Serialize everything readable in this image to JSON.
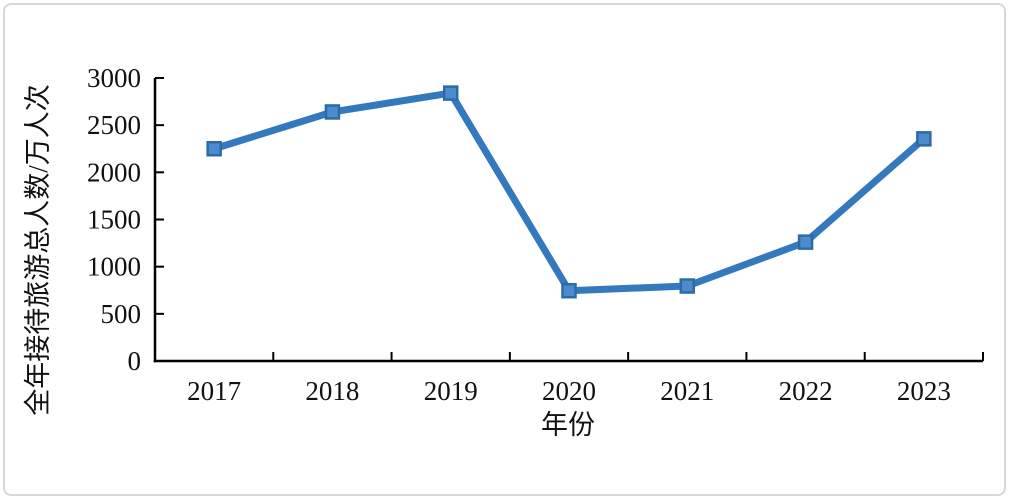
{
  "chart_data": {
    "type": "line",
    "title": "",
    "xlabel": "年份",
    "ylabel": "全年接待旅游总人数/万人次",
    "categories": [
      "2017",
      "2018",
      "2019",
      "2020",
      "2021",
      "2022",
      "2023"
    ],
    "values": [
      2250,
      2640,
      2840,
      745,
      795,
      1260,
      2355
    ],
    "y_ticks": [
      0,
      500,
      1000,
      1500,
      2000,
      2500,
      3000
    ],
    "ylim": [
      0,
      3000
    ],
    "grid": "off",
    "legend": "none",
    "colors": {
      "line": "#3478BE",
      "marker_fill": "#4C8CCE",
      "marker_stroke": "#2D6BA6",
      "axis": "#000000",
      "frame_border": "#d8d8d8"
    },
    "marker_shape": "square"
  }
}
